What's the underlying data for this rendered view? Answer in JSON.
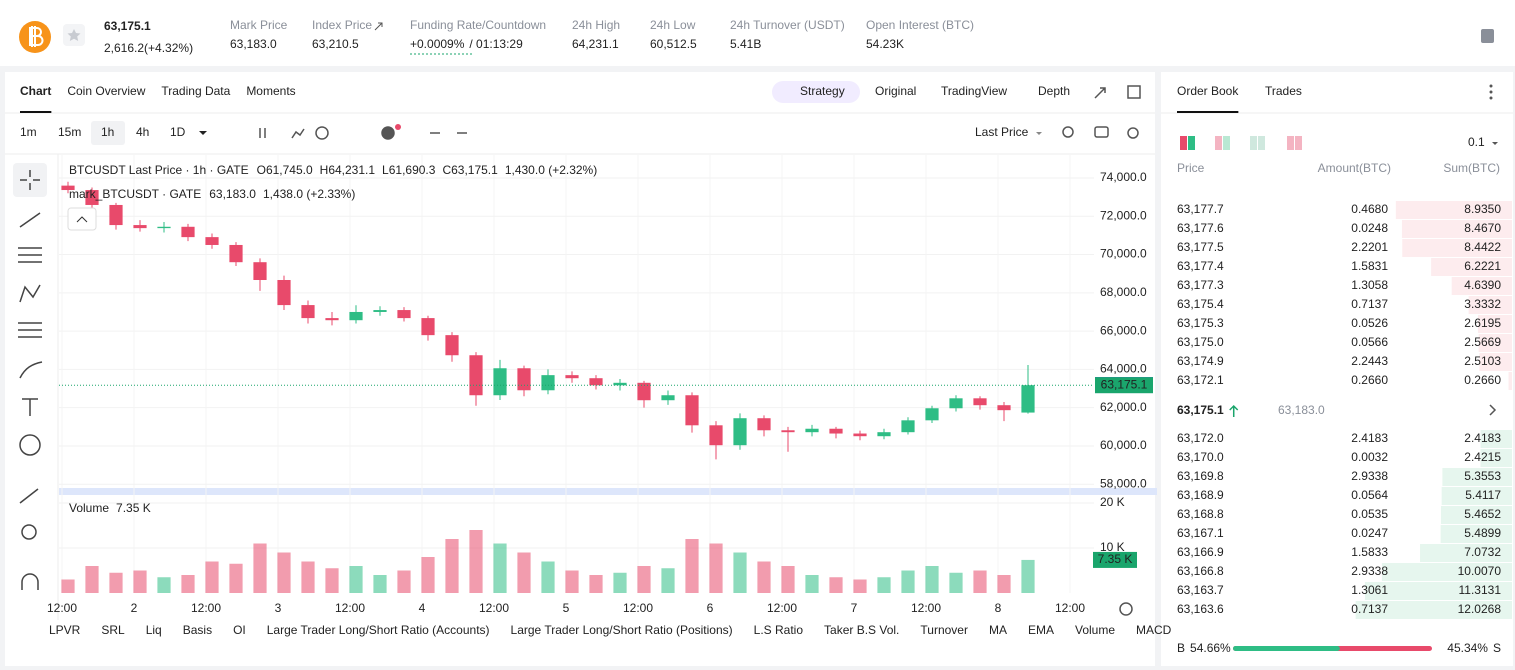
{
  "header": {
    "price": "63,175.1",
    "change": "2,616.2(+4.32%)",
    "stats": [
      {
        "label": "Mark Price",
        "value": "63,183.0"
      },
      {
        "label": "Index Price",
        "value": "63,210.5"
      },
      {
        "label": "Funding Rate/Countdown",
        "value": "+0.0009%",
        "countdown": "/ 01:13:29"
      },
      {
        "label": "24h High",
        "value": "64,231.1"
      },
      {
        "label": "24h Low",
        "value": "60,512.5"
      },
      {
        "label": "24h Turnover (USDT)",
        "value": "5.41B"
      },
      {
        "label": "Open Interest (BTC)",
        "value": "54.23K"
      }
    ]
  },
  "chart_tabs": [
    "Chart",
    "Coin Overview",
    "Trading Data",
    "Moments"
  ],
  "view_tabs": [
    "Strategy",
    "Original",
    "TradingView",
    "Depth"
  ],
  "intervals": [
    "1m",
    "15m",
    "1h",
    "4h",
    "1D"
  ],
  "price_type": "Last Price",
  "legend": {
    "title": "BTCUSDT Last Price · 1h · GATE",
    "parts": [
      "O61,745.0",
      "H64,231.1",
      "L61,690.3",
      "C63,175.1",
      "1,430.0 (+2.32%)"
    ],
    "mark_title": "mark_BTCUSDT · GATE",
    "mark_parts": [
      "63,183.0",
      "1,438.0 (+2.33%)"
    ]
  },
  "chart_data": {
    "type": "candlestick",
    "up_color": "#2ebd85",
    "down_color": "#e84a6b",
    "x": [
      13,
      17,
      21,
      25,
      29,
      33,
      37,
      41,
      45,
      49,
      53,
      57,
      61,
      65,
      69,
      73,
      77,
      81,
      85,
      89,
      93,
      97,
      101,
      105,
      109,
      113,
      117,
      121,
      125,
      129,
      133,
      137,
      141,
      145,
      149,
      153,
      157,
      161,
      165,
      169,
      173
    ],
    "open": [
      73600,
      73370,
      72590,
      71540,
      71380,
      71450,
      70910,
      70500,
      69600,
      68670,
      67360,
      66680,
      66570,
      67000,
      67100,
      66680,
      65790,
      64740,
      62650,
      64060,
      62910,
      63700,
      63540,
      63170,
      63300,
      62390,
      62650,
      61080,
      60040,
      61450,
      60820,
      60720,
      60900,
      60650,
      60510,
      60720,
      61340,
      61970,
      62490,
      62130,
      61745
    ],
    "high": [
      73800,
      73500,
      72700,
      71800,
      71700,
      71600,
      71100,
      70650,
      69800,
      68900,
      67600,
      67000,
      67350,
      67300,
      67250,
      66800,
      65950,
      64900,
      64500,
      64200,
      64000,
      63900,
      63700,
      63500,
      63400,
      62900,
      62800,
      61300,
      61700,
      61600,
      61000,
      61100,
      61000,
      60800,
      60900,
      61500,
      62100,
      62650,
      62600,
      62300,
      64231.1
    ],
    "low": [
      73200,
      72400,
      71300,
      71200,
      71150,
      70700,
      70300,
      69400,
      68100,
      67100,
      66400,
      66300,
      66400,
      66800,
      66500,
      65500,
      64400,
      62100,
      62400,
      62600,
      62700,
      63300,
      62950,
      62900,
      62000,
      62150,
      60700,
      59300,
      59800,
      60500,
      59700,
      60500,
      60400,
      60300,
      60350,
      60600,
      61200,
      61800,
      61900,
      61300,
      61690.3
    ],
    "close": [
      73370,
      72590,
      71540,
      71380,
      71450,
      70910,
      70500,
      69600,
      68670,
      67360,
      66680,
      66570,
      67000,
      67100,
      66680,
      65790,
      64740,
      62650,
      64060,
      62910,
      63700,
      63540,
      63170,
      63300,
      62390,
      62650,
      61080,
      60040,
      61450,
      60820,
      60720,
      60900,
      60650,
      60510,
      60720,
      61340,
      61970,
      62490,
      62130,
      61870,
      63175.1
    ],
    "xlim": [
      11.5,
      184
    ],
    "xticks": [
      {
        "value": 12,
        "label": "12:00"
      },
      {
        "value": 24,
        "label": "2"
      },
      {
        "value": 36,
        "label": "12:00"
      },
      {
        "value": 48,
        "label": "3"
      },
      {
        "value": 60,
        "label": "12:00"
      },
      {
        "value": 72,
        "label": "4"
      },
      {
        "value": 84,
        "label": "12:00"
      },
      {
        "value": 96,
        "label": "5"
      },
      {
        "value": 108,
        "label": "12:00"
      },
      {
        "value": 120,
        "label": "6"
      },
      {
        "value": 132,
        "label": "12:00"
      },
      {
        "value": 144,
        "label": "7"
      },
      {
        "value": 156,
        "label": "12:00"
      },
      {
        "value": 168,
        "label": "8"
      },
      {
        "value": 180,
        "label": "12:00"
      }
    ],
    "ylim": [
      57700,
      75200
    ],
    "yticks": [
      {
        "value": 58000,
        "label": "58,000.0"
      },
      {
        "value": 60000,
        "label": "60,000.0"
      },
      {
        "value": 62000,
        "label": "62,000.0"
      },
      {
        "value": 64000,
        "label": "64,000.0"
      },
      {
        "value": 66000,
        "label": "66,000.0"
      },
      {
        "value": 68000,
        "label": "68,000.0"
      },
      {
        "value": 70000,
        "label": "70,000.0"
      },
      {
        "value": 72000,
        "label": "72,000.0"
      },
      {
        "value": 74000,
        "label": "74,000.0"
      }
    ],
    "price_labels": [
      {
        "value": 63183.0,
        "label": "63,183.0",
        "color": "#2f5fd0"
      },
      {
        "value": 63175.1,
        "label": "63,175.1",
        "color": "#1aa56c"
      }
    ],
    "volume": {
      "title": "Volume",
      "last_label": "7.35 K",
      "values": [
        3000,
        6000,
        4500,
        5000,
        3500,
        4000,
        7000,
        6500,
        11000,
        9000,
        7000,
        5500,
        6000,
        4000,
        5000,
        8000,
        12000,
        14000,
        11000,
        9000,
        7000,
        5000,
        4000,
        4500,
        6000,
        5500,
        12000,
        11000,
        9000,
        7000,
        6000,
        4000,
        3500,
        3000,
        3500,
        5000,
        6000,
        4500,
        5000,
        4000,
        7350
      ],
      "ylim": [
        0,
        22000
      ],
      "yticks": [
        {
          "value": 10000,
          "label": "10 K"
        },
        {
          "value": 20000,
          "label": "20 K"
        }
      ]
    }
  },
  "indicators": [
    "LPVR",
    "SRL",
    "Liq",
    "Basis",
    "OI",
    "Large Trader Long/Short Ratio (Accounts)",
    "Large Trader Long/Short Ratio (Positions)",
    "L.S Ratio",
    "Taker B.S Vol.",
    "Turnover",
    "MA",
    "EMA",
    "Volume",
    "MACD"
  ],
  "order_book": {
    "tabs": [
      "Order Book",
      "Trades"
    ],
    "precision": "0.1",
    "columns": [
      "Price",
      "Amount(BTC)",
      "Sum(BTC)"
    ],
    "asks": [
      [
        "63,177.7",
        "0.4680",
        "8.9350"
      ],
      [
        "63,177.6",
        "0.0248",
        "8.4670"
      ],
      [
        "63,177.5",
        "2.2201",
        "8.4422"
      ],
      [
        "63,177.4",
        "1.5831",
        "6.2221"
      ],
      [
        "63,177.3",
        "1.3058",
        "4.6390"
      ],
      [
        "63,175.4",
        "0.7137",
        "3.3332"
      ],
      [
        "63,175.3",
        "0.0526",
        "2.6195"
      ],
      [
        "63,175.0",
        "0.0566",
        "2.5669"
      ],
      [
        "63,174.9",
        "2.2443",
        "2.5103"
      ],
      [
        "63,172.1",
        "0.2660",
        "0.2660"
      ]
    ],
    "last_price": "63,175.1",
    "mark_price": "63,183.0",
    "bids": [
      [
        "63,172.0",
        "2.4183",
        "2.4183"
      ],
      [
        "63,170.0",
        "0.0032",
        "2.4215"
      ],
      [
        "63,169.8",
        "2.9338",
        "5.3553"
      ],
      [
        "63,168.9",
        "0.0564",
        "5.4117"
      ],
      [
        "63,168.8",
        "0.0535",
        "5.4652"
      ],
      [
        "63,167.1",
        "0.0247",
        "5.4899"
      ],
      [
        "63,166.9",
        "1.5833",
        "7.0732"
      ],
      [
        "63,166.8",
        "2.9338",
        "10.0070"
      ],
      [
        "63,163.7",
        "1.3061",
        "11.3131"
      ],
      [
        "63,163.6",
        "0.7137",
        "12.0268"
      ]
    ],
    "buy_label": "B",
    "buy_ratio": 54.66,
    "buy_ratio_label": "54.66%",
    "sell_label": "S",
    "sell_ratio_label": "45.34%"
  }
}
